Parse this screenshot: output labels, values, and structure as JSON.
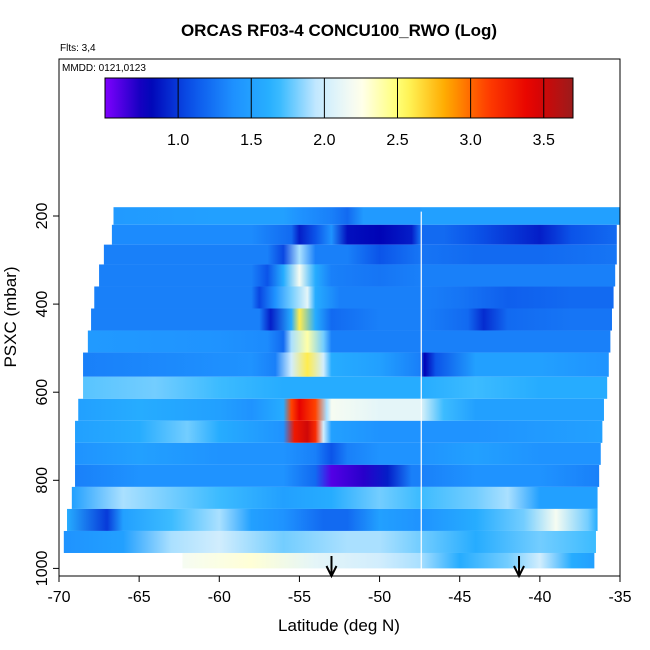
{
  "chart_data": {
    "type": "heatmap",
    "title": "ORCAS RF03-4 CONCU100_RWO (Log)",
    "flights_label": "Flts: 3,4",
    "date_label": "MMDD: 0121,0123",
    "xlabel": "Latitude (deg N)",
    "ylabel": "PSXC (mbar)",
    "xlim": [
      -70,
      -35
    ],
    "ylim": [
      1000,
      170
    ],
    "y_reversed": true,
    "x_ticks": [
      -70,
      -65,
      -60,
      -55,
      -50,
      -45,
      -40,
      -35
    ],
    "x_tick_labels": [
      "-70",
      "-65",
      "-60",
      "-55",
      "-50",
      "-45",
      "-40",
      "-35"
    ],
    "y_ticks": [
      200,
      400,
      600,
      800,
      1000
    ],
    "y_tick_labels": [
      "200",
      "400",
      "600",
      "800",
      "1000"
    ],
    "colorbar": {
      "range": [
        0.5,
        3.7
      ],
      "ticks": [
        1.0,
        1.5,
        2.0,
        2.5,
        3.0,
        3.5
      ],
      "tick_labels": [
        "1.0",
        "1.5",
        "2.0",
        "2.5",
        "3.0",
        "3.5"
      ],
      "colors": [
        "#7f00ff",
        "#0000b4",
        "#0a50e8",
        "#1e90ff",
        "#28b4ff",
        "#c8eaff",
        "#fffff0",
        "#ffff64",
        "#ffaa00",
        "#ff3c00",
        "#e60000",
        "#9b1b1b"
      ]
    },
    "vertical_line_x": -47.4,
    "arrows_x": [
      -53.0,
      -41.3
    ],
    "bands": [
      {
        "p_top": 180,
        "p_bot": 220,
        "x_start": -66.6,
        "x_end": -35,
        "stops": [
          [
            -66.6,
            1.45
          ],
          [
            -60,
            1.5
          ],
          [
            -56,
            1.5
          ],
          [
            -55,
            1.4
          ],
          [
            -53,
            1.3
          ],
          [
            -52,
            1.2
          ],
          [
            -51,
            1.45
          ],
          [
            -47.5,
            1.45
          ],
          [
            -47.3,
            1.5
          ],
          [
            -40,
            1.5
          ],
          [
            -35,
            1.5
          ]
        ]
      },
      {
        "p_top": 220,
        "p_bot": 265,
        "x_start": -66.7,
        "x_end": -35.2,
        "stops": [
          [
            -66.7,
            1.35
          ],
          [
            -58,
            1.35
          ],
          [
            -55.5,
            1.2
          ],
          [
            -55,
            0.9
          ],
          [
            -54,
            1.1
          ],
          [
            -53,
            1.4
          ],
          [
            -52,
            0.85
          ],
          [
            -50,
            0.8
          ],
          [
            -48,
            0.9
          ],
          [
            -47.5,
            1.2
          ],
          [
            -46,
            1.2
          ],
          [
            -44,
            1.1
          ],
          [
            -40,
            0.9
          ],
          [
            -38,
            1.1
          ],
          [
            -35.2,
            1.2
          ]
        ]
      },
      {
        "p_top": 265,
        "p_bot": 310,
        "x_start": -67.2,
        "x_end": -35.2,
        "stops": [
          [
            -67.2,
            1.3
          ],
          [
            -57,
            1.3
          ],
          [
            -56,
            1.05
          ],
          [
            -55,
            1.9
          ],
          [
            -54,
            1.3
          ],
          [
            -52,
            1.3
          ],
          [
            -50,
            1.1
          ],
          [
            -47.5,
            1.25
          ],
          [
            -44,
            1.2
          ],
          [
            -40,
            1.2
          ],
          [
            -35.2,
            1.25
          ]
        ]
      },
      {
        "p_top": 310,
        "p_bot": 360,
        "x_start": -67.5,
        "x_end": -35.3,
        "stops": [
          [
            -67.5,
            1.3
          ],
          [
            -58,
            1.3
          ],
          [
            -57,
            1.1
          ],
          [
            -56,
            1.6
          ],
          [
            -55,
            2.2
          ],
          [
            -54,
            1.6
          ],
          [
            -53,
            1.3
          ],
          [
            -50,
            1.25
          ],
          [
            -47.5,
            1.3
          ],
          [
            -44,
            1.3
          ],
          [
            -40,
            1.3
          ],
          [
            -35.3,
            1.3
          ]
        ]
      },
      {
        "p_top": 360,
        "p_bot": 410,
        "x_start": -67.8,
        "x_end": -35.4,
        "stops": [
          [
            -67.8,
            1.3
          ],
          [
            -58,
            1.3
          ],
          [
            -57.5,
            1.05
          ],
          [
            -56.5,
            1.4
          ],
          [
            -55.5,
            1.8
          ],
          [
            -54.5,
            2.1
          ],
          [
            -54,
            1.6
          ],
          [
            -52.5,
            1.3
          ],
          [
            -47.5,
            1.3
          ],
          [
            -45,
            1.25
          ],
          [
            -42,
            1.15
          ],
          [
            -38,
            1.2
          ],
          [
            -35.4,
            1.2
          ]
        ]
      },
      {
        "p_top": 410,
        "p_bot": 460,
        "x_start": -68.0,
        "x_end": -35.5,
        "stops": [
          [
            -68,
            1.3
          ],
          [
            -57.5,
            1.3
          ],
          [
            -56.8,
            0.9
          ],
          [
            -55.5,
            1.6
          ],
          [
            -55,
            2.6
          ],
          [
            -54,
            1.6
          ],
          [
            -53,
            1.2
          ],
          [
            -50,
            1.3
          ],
          [
            -47.5,
            1.3
          ],
          [
            -44.5,
            1.2
          ],
          [
            -43.5,
            0.95
          ],
          [
            -42,
            1.2
          ],
          [
            -38,
            1.25
          ],
          [
            -35.5,
            1.25
          ]
        ]
      },
      {
        "p_top": 460,
        "p_bot": 510,
        "x_start": -68.2,
        "x_end": -35.6,
        "stops": [
          [
            -68.2,
            1.45
          ],
          [
            -60,
            1.4
          ],
          [
            -57,
            1.35
          ],
          [
            -56,
            1.2
          ],
          [
            -55.5,
            1.9
          ],
          [
            -54.5,
            2.4
          ],
          [
            -53.5,
            1.8
          ],
          [
            -53,
            1.3
          ],
          [
            -50,
            1.3
          ],
          [
            -47.5,
            1.3
          ],
          [
            -44,
            1.3
          ],
          [
            -40,
            1.3
          ],
          [
            -35.6,
            1.3
          ]
        ]
      },
      {
        "p_top": 510,
        "p_bot": 565,
        "x_start": -68.5,
        "x_end": -35.7,
        "stops": [
          [
            -68.5,
            1.3
          ],
          [
            -58,
            1.4
          ],
          [
            -56.5,
            1.3
          ],
          [
            -55.5,
            2.0
          ],
          [
            -54.5,
            2.6
          ],
          [
            -53.5,
            2.0
          ],
          [
            -53,
            1.6
          ],
          [
            -50,
            1.5
          ],
          [
            -47.5,
            1.3
          ],
          [
            -47.2,
            0.8
          ],
          [
            -46.5,
            1.1
          ],
          [
            -44,
            1.5
          ],
          [
            -40,
            1.5
          ],
          [
            -35.7,
            1.4
          ]
        ]
      },
      {
        "p_top": 565,
        "p_bot": 615,
        "x_start": -68.5,
        "x_end": -35.8,
        "stops": [
          [
            -68.5,
            1.75
          ],
          [
            -64,
            1.8
          ],
          [
            -60,
            1.7
          ],
          [
            -56,
            1.6
          ],
          [
            -53,
            1.6
          ],
          [
            -50,
            1.6
          ],
          [
            -47.5,
            1.6
          ],
          [
            -44,
            1.7
          ],
          [
            -40,
            1.6
          ],
          [
            -35.8,
            1.6
          ]
        ]
      },
      {
        "p_top": 615,
        "p_bot": 665,
        "x_start": -68.8,
        "x_end": -36.0,
        "stops": [
          [
            -68.8,
            1.5
          ],
          [
            -65,
            1.6
          ],
          [
            -60,
            1.5
          ],
          [
            -58,
            1.4
          ],
          [
            -57,
            1.5
          ],
          [
            -56,
            1.6
          ],
          [
            -55.5,
            3.1
          ],
          [
            -55,
            3.4
          ],
          [
            -54,
            3.1
          ],
          [
            -53.3,
            1.9
          ],
          [
            -53,
            2.2
          ],
          [
            -50,
            2.1
          ],
          [
            -47.5,
            2.1
          ],
          [
            -46,
            1.7
          ],
          [
            -44,
            1.5
          ],
          [
            -40,
            1.5
          ],
          [
            -36,
            1.5
          ]
        ]
      },
      {
        "p_top": 665,
        "p_bot": 715,
        "x_start": -69.0,
        "x_end": -36.1,
        "stops": [
          [
            -69,
            1.5
          ],
          [
            -65,
            1.6
          ],
          [
            -62,
            1.8
          ],
          [
            -60,
            1.6
          ],
          [
            -58,
            1.5
          ],
          [
            -56,
            1.4
          ],
          [
            -55.3,
            3.3
          ],
          [
            -54.5,
            3.5
          ],
          [
            -54,
            3.2
          ],
          [
            -53.5,
            2.0
          ],
          [
            -53,
            1.5
          ],
          [
            -50,
            1.4
          ],
          [
            -47.5,
            1.4
          ],
          [
            -44,
            1.4
          ],
          [
            -40,
            1.45
          ],
          [
            -36.1,
            1.5
          ]
        ]
      },
      {
        "p_top": 715,
        "p_bot": 765,
        "x_start": -69.0,
        "x_end": -36.2,
        "stops": [
          [
            -69,
            1.4
          ],
          [
            -65,
            1.5
          ],
          [
            -60,
            1.4
          ],
          [
            -56,
            1.4
          ],
          [
            -54,
            1.3
          ],
          [
            -53,
            1.1
          ],
          [
            -52,
            1.3
          ],
          [
            -50,
            1.4
          ],
          [
            -47.5,
            1.4
          ],
          [
            -44,
            1.5
          ],
          [
            -40,
            1.4
          ],
          [
            -36.2,
            1.4
          ]
        ]
      },
      {
        "p_top": 765,
        "p_bot": 815,
        "x_start": -69.0,
        "x_end": -36.3,
        "stops": [
          [
            -69,
            1.3
          ],
          [
            -65,
            1.4
          ],
          [
            -60,
            1.4
          ],
          [
            -56,
            1.4
          ],
          [
            -54,
            1.2
          ],
          [
            -53,
            0.6
          ],
          [
            -51,
            0.7
          ],
          [
            -49.5,
            0.9
          ],
          [
            -48,
            1.3
          ],
          [
            -47.5,
            1.3
          ],
          [
            -44,
            1.4
          ],
          [
            -40,
            1.4
          ],
          [
            -36.3,
            1.3
          ]
        ]
      },
      {
        "p_top": 815,
        "p_bot": 865,
        "x_start": -69.2,
        "x_end": -36.4,
        "stops": [
          [
            -69.2,
            1.5
          ],
          [
            -66,
            1.9
          ],
          [
            -63,
            1.8
          ],
          [
            -60,
            1.7
          ],
          [
            -56,
            1.5
          ],
          [
            -53,
            1.6
          ],
          [
            -50,
            1.8
          ],
          [
            -47.5,
            1.7
          ],
          [
            -44,
            1.8
          ],
          [
            -42,
            1.9
          ],
          [
            -40,
            1.5
          ],
          [
            -36.4,
            1.5
          ]
        ]
      },
      {
        "p_top": 865,
        "p_bot": 915,
        "x_start": -69.5,
        "x_end": -36.4,
        "stops": [
          [
            -69.5,
            1.6
          ],
          [
            -67,
            1.0
          ],
          [
            -66,
            1.5
          ],
          [
            -63,
            1.7
          ],
          [
            -60,
            1.9
          ],
          [
            -58,
            1.5
          ],
          [
            -56,
            1.4
          ],
          [
            -53.5,
            1.2
          ],
          [
            -52,
            1.2
          ],
          [
            -50,
            1.5
          ],
          [
            -47.5,
            1.4
          ],
          [
            -44,
            1.6
          ],
          [
            -41,
            1.8
          ],
          [
            -39,
            2.2
          ],
          [
            -37,
            1.8
          ],
          [
            -36.4,
            1.6
          ]
        ]
      },
      {
        "p_top": 915,
        "p_bot": 965,
        "x_start": -69.7,
        "x_end": -36.5,
        "stops": [
          [
            -69.7,
            1.4
          ],
          [
            -66,
            1.5
          ],
          [
            -63,
            1.9
          ],
          [
            -60,
            2.0
          ],
          [
            -56,
            1.8
          ],
          [
            -52,
            1.9
          ],
          [
            -50,
            1.9
          ],
          [
            -47.5,
            1.8
          ],
          [
            -44,
            1.6
          ],
          [
            -40,
            1.8
          ],
          [
            -36.5,
            1.7
          ]
        ]
      },
      {
        "p_top": 965,
        "p_bot": 1000,
        "x_start": -62.3,
        "x_end": -36.6,
        "stops": [
          [
            -62.3,
            2.2
          ],
          [
            -58,
            2.3
          ],
          [
            -54,
            2.1
          ],
          [
            -50,
            2.0
          ],
          [
            -47.5,
            1.9
          ],
          [
            -45,
            1.6
          ],
          [
            -42,
            1.8
          ],
          [
            -40,
            2.0
          ],
          [
            -38,
            1.6
          ],
          [
            -36.6,
            1.5
          ]
        ]
      }
    ]
  }
}
